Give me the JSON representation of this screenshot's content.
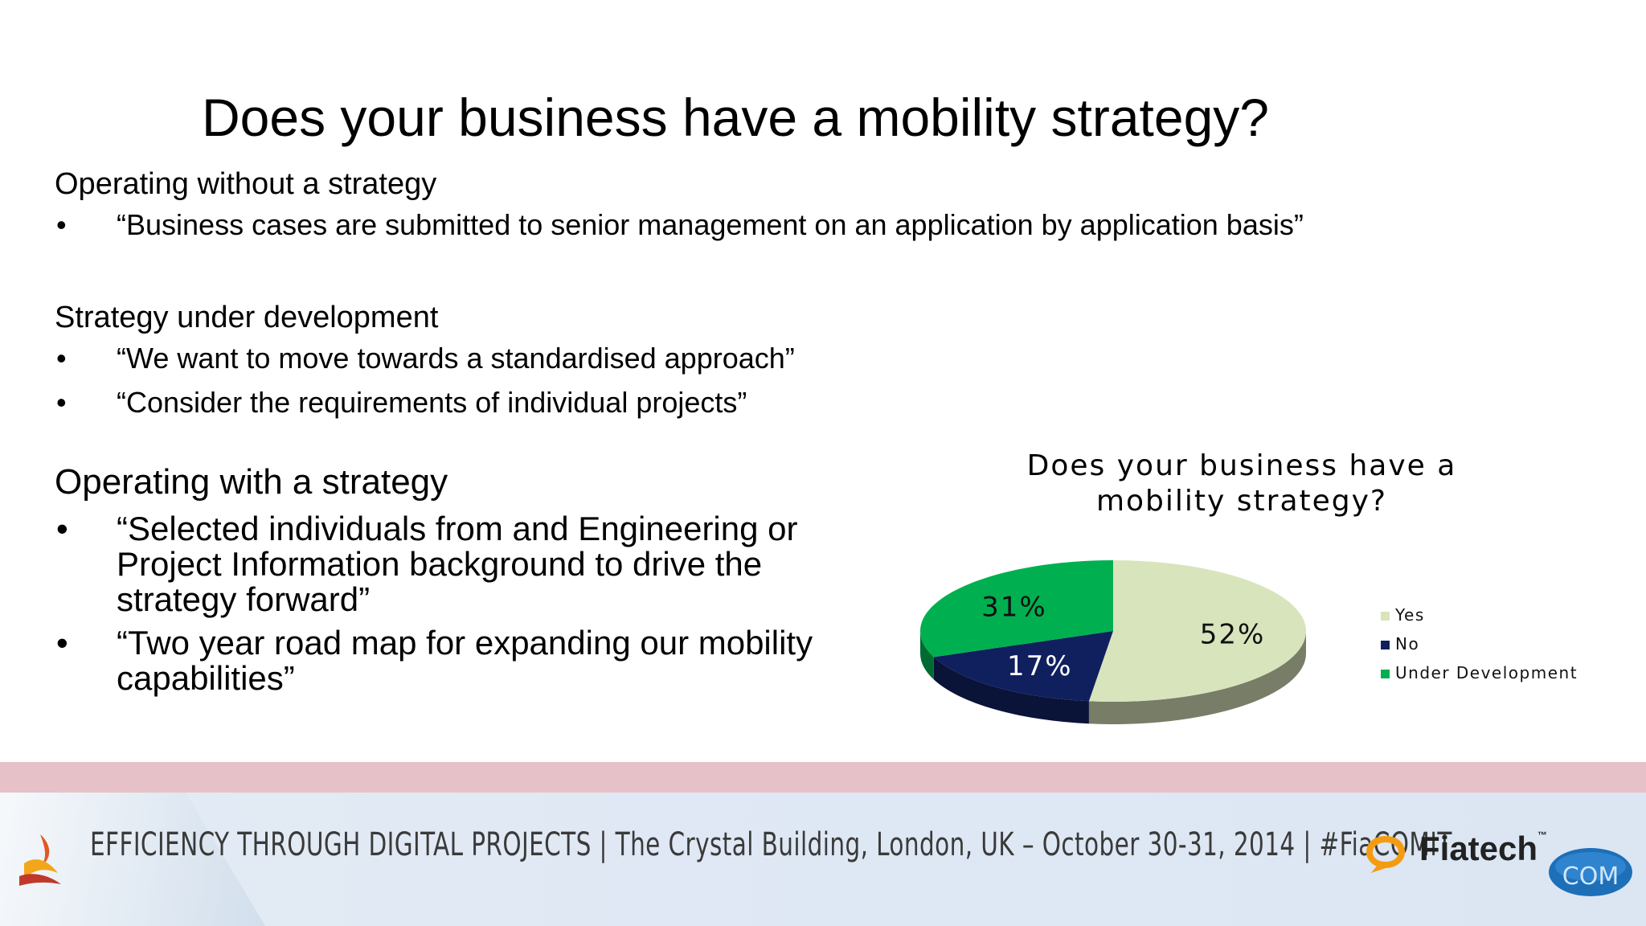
{
  "slide": {
    "title": "Does your business have a mobility strategy?"
  },
  "sections": [
    {
      "heading": "Operating without a strategy",
      "bullets": [
        "“Business cases are submitted to senior management on an application by application basis”"
      ]
    },
    {
      "heading": "Strategy under development",
      "bullets": [
        "“We want to move towards a standardised approach”",
        "“Consider the requirements of individual projects”"
      ]
    },
    {
      "heading": "Operating with a strategy",
      "bullets": [
        "“Selected individuals from and Engineering or Project Information background to drive the strategy forward”",
        "“Two year road map for expanding our mobility capabilities”"
      ]
    }
  ],
  "bullet_char": "•",
  "chart_data": {
    "type": "pie",
    "title": "Does your business have a mobility strategy?",
    "categories": [
      "Yes",
      "No",
      "Under Development"
    ],
    "values": [
      52,
      17,
      31
    ],
    "labels": [
      "52%",
      "17%",
      "31%"
    ],
    "colors": [
      "#d8e4bc",
      "#10205e",
      "#00b050"
    ],
    "legend": "right"
  },
  "footer": {
    "text": "EFFICIENCY THROUGH DIGITAL PROJECTS | The Crystal Building, London, UK – October 30-31, 2014 | #FiaCOMIT",
    "brand": "Fiatech",
    "brand_tm": "™",
    "badge": "COM"
  }
}
